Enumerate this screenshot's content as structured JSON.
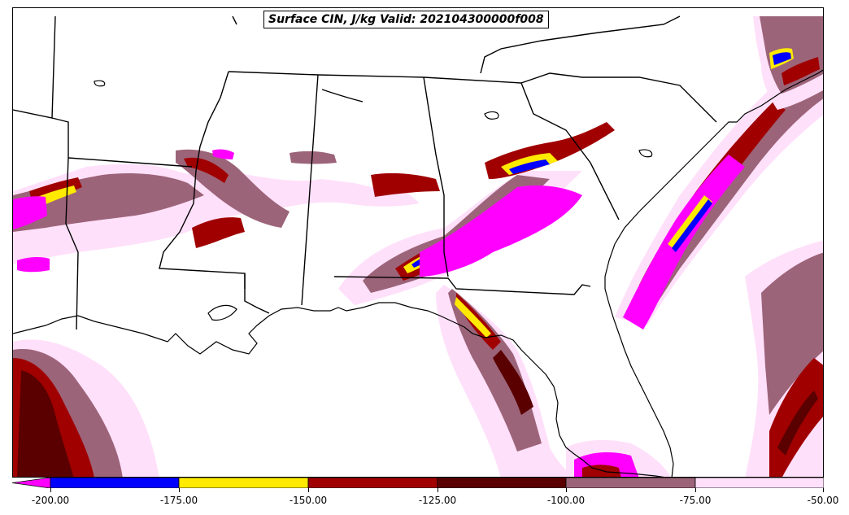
{
  "title": "Surface CIN, J/kg Valid: 202104300000f008",
  "colorbar": {
    "ticks": [
      "-200.00",
      "-175.00",
      "-150.00",
      "-125.00",
      "-100.00",
      "-75.00",
      "-50.00"
    ],
    "colors": [
      "#ff00ff",
      "#0000ff",
      "#ffea00",
      "#a00000",
      "#5a0000",
      "#9c6479",
      "#ffe0fa"
    ]
  },
  "map": {
    "region": "Southeast United States",
    "features": [
      "state-borders",
      "coastline",
      "cin-contours"
    ]
  }
}
